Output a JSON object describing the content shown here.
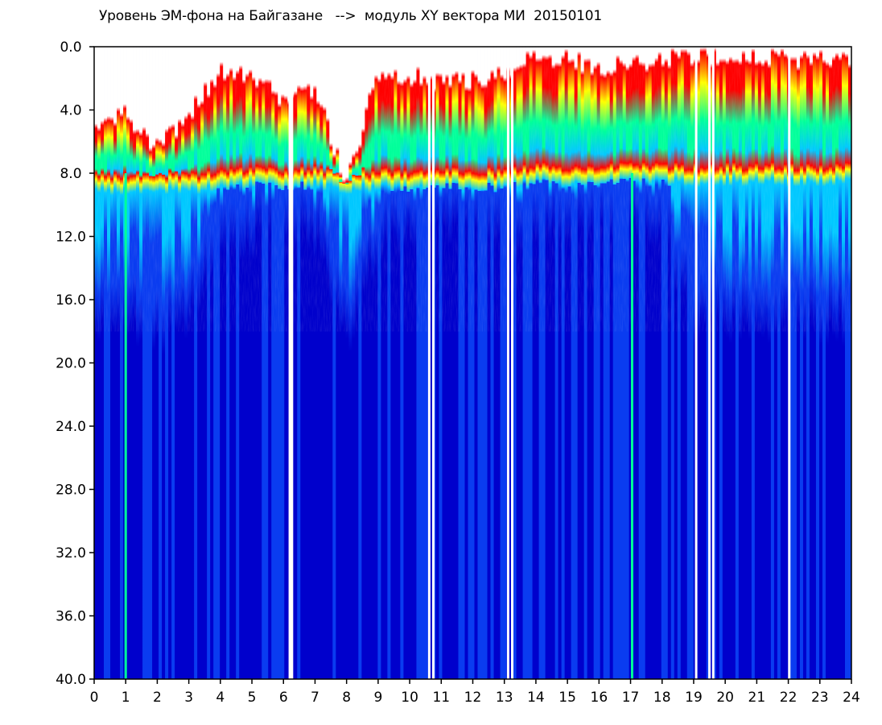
{
  "chart_data": {
    "type": "heatmap",
    "title": "Уровень ЭМ-фона на Байгазане   -->  модуль XY вектора МИ  20150101",
    "xlabel": "",
    "ylabel": "",
    "x_ticks": [
      "0",
      "1",
      "2",
      "3",
      "4",
      "5",
      "6",
      "7",
      "8",
      "9",
      "10",
      "11",
      "12",
      "13",
      "14",
      "15",
      "16",
      "17",
      "18",
      "19",
      "20",
      "21",
      "22",
      "23",
      "24"
    ],
    "y_ticks": [
      "0.0",
      "4.0",
      "8.0",
      "12.0",
      "16.0",
      "20.0",
      "24.0",
      "28.0",
      "32.0",
      "36.0",
      "40.0"
    ],
    "xlim": [
      0,
      24
    ],
    "ylim": [
      0,
      40
    ],
    "y_axis_inverted": true,
    "colormap": [
      "#0000cc",
      "#0a3cf0",
      "#00c8ff",
      "#00ff9a",
      "#ffff00",
      "#ff0000"
    ],
    "white_gaps_x": [
      6.2,
      6.27,
      10.62,
      10.75,
      13.12,
      13.25,
      19.08,
      19.5,
      19.62,
      22.03
    ],
    "bright_lines_x": [
      1.0,
      17.05
    ],
    "activity_profile": {
      "x": [
        0,
        1,
        2,
        3,
        4,
        5,
        6,
        7,
        8,
        9,
        10,
        11,
        12,
        13,
        14,
        15,
        16,
        17,
        18,
        19,
        20,
        21,
        22,
        23,
        24
      ],
      "top_of_activity": [
        5.0,
        4.5,
        6.5,
        4.5,
        1.8,
        2.2,
        3.5,
        2.8,
        9.0,
        1.8,
        2.0,
        2.5,
        2.3,
        1.8,
        0.8,
        1.0,
        1.5,
        1.2,
        1.0,
        0.8,
        0.8,
        0.9,
        1.0,
        0.9,
        1.0
      ],
      "high_band_bottom": [
        8.5,
        8.5,
        8.5,
        8.5,
        8.3,
        8.2,
        8.2,
        8.2,
        8.5,
        8.3,
        8.3,
        8.3,
        8.3,
        8.3,
        8.0,
        8.0,
        8.0,
        8.0,
        8.0,
        8.0,
        8.0,
        8.0,
        8.0,
        8.0,
        8.0
      ],
      "cyan_band_bottom": [
        15.0,
        15.0,
        16.0,
        15.0,
        9.5,
        9.5,
        9.0,
        9.5,
        16.0,
        10.0,
        9.0,
        9.0,
        9.0,
        9.0,
        9.0,
        9.0,
        9.0,
        9.0,
        9.0,
        15.0,
        15.0,
        15.0,
        15.0,
        15.0,
        15.0
      ]
    }
  }
}
